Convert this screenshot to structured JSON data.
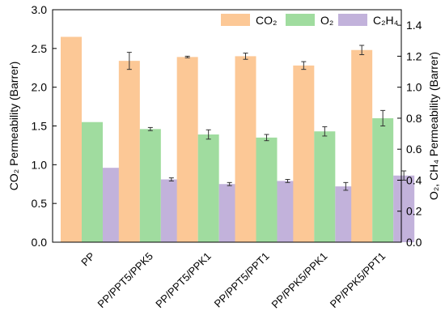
{
  "chart_data": {
    "type": "bar",
    "categories": [
      "PP",
      "PP/PPT5/PPK5",
      "PP/PPT5/PPK1",
      "PP/PPT5/PPT1",
      "PP/PPK5/PPK1",
      "PP/PPK5/PPT1"
    ],
    "series": [
      {
        "name": "CO₂",
        "axis": "left",
        "color": "#fcc896",
        "values": [
          2.65,
          2.34,
          2.39,
          2.4,
          2.28,
          2.48
        ],
        "errors": [
          0,
          0.11,
          0.01,
          0.04,
          0.05,
          0.06
        ]
      },
      {
        "name": "O₂",
        "axis": "right",
        "color": "#a0dc9f",
        "values": [
          0.775,
          0.73,
          0.695,
          0.675,
          0.715,
          0.8
        ],
        "errors": [
          0,
          0.01,
          0.03,
          0.02,
          0.03,
          0.05
        ]
      },
      {
        "name": "C₂H₄",
        "axis": "right",
        "color": "#c2b2db",
        "values": [
          0.48,
          0.405,
          0.375,
          0.395,
          0.36,
          0.43
        ],
        "errors": [
          0,
          0.01,
          0.01,
          0.01,
          0.025,
          0.03
        ]
      }
    ],
    "left_axis": {
      "label": "CO₂ Permeability (Barrer)",
      "min": 0,
      "max": 3.0,
      "ticks": [
        "0.0",
        "0.5",
        "1.0",
        "1.5",
        "2.0",
        "2.5",
        "3.0"
      ]
    },
    "right_axis": {
      "label": "O₂, CH₄ Permeability (Barrer)",
      "min": 0,
      "max": 1.5,
      "ticks": [
        "0.0",
        "0.2",
        "0.4",
        "0.6",
        "0.8",
        "1.0",
        "1.2",
        "1.4"
      ]
    },
    "legend_position": "top-right",
    "grid": false
  }
}
